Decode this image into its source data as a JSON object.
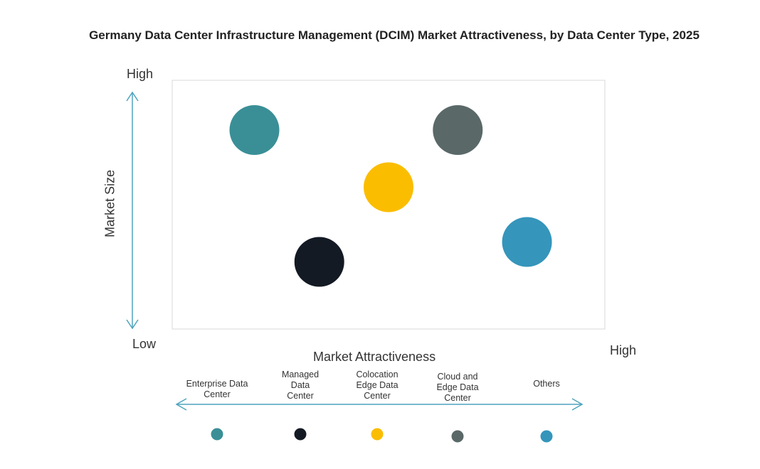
{
  "chart_data": {
    "type": "scatter",
    "title": "Germany Data Center Infrastructure  Management (DCIM) Market Attractiveness,  by Data Center Type, 2025",
    "xlabel": "Market Attractiveness",
    "ylabel": "Market Size",
    "x_low_label": "Low",
    "x_high_label": "High",
    "y_high_label": "High",
    "xlim": [
      0,
      100
    ],
    "ylim": [
      0,
      100
    ],
    "grid": false,
    "legend_placement": "bottom",
    "series": [
      {
        "name": "Enterprise Data\nCenter",
        "x": 19,
        "y": 80,
        "color": "#3a8f96"
      },
      {
        "name": "Managed\nData\nCenter",
        "x": 34,
        "y": 27,
        "color": "#141a24"
      },
      {
        "name": "Colocation\nEdge Data\nCenter",
        "x": 50,
        "y": 57,
        "color": "#fbbd00"
      },
      {
        "name": "Cloud and\nEdge Data\nCenter",
        "x": 66,
        "y": 80,
        "color": "#5a6868"
      },
      {
        "name": "Others",
        "x": 82,
        "y": 35,
        "color": "#3595bb"
      }
    ]
  }
}
